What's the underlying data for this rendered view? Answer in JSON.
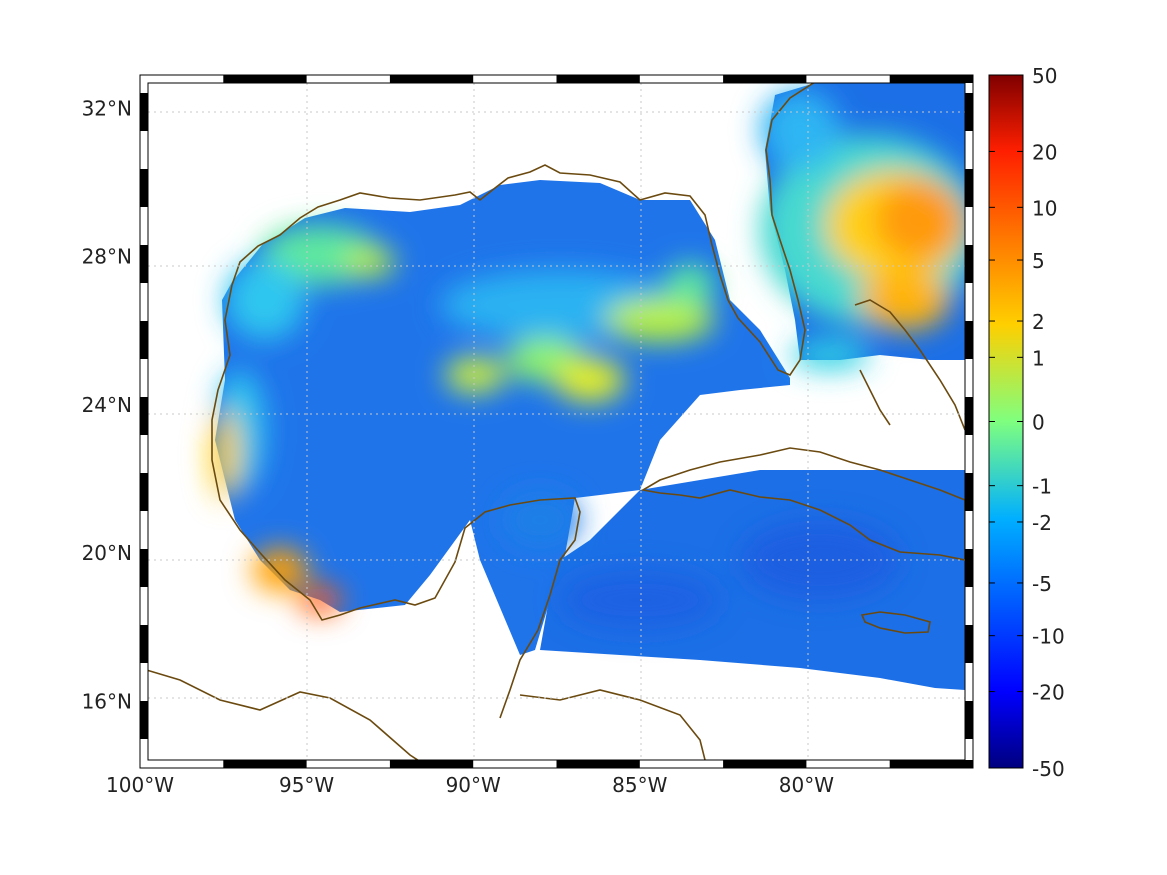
{
  "map": {
    "lon_range": [
      -100,
      -75
    ],
    "lat_range": [
      14.2,
      32.9
    ],
    "x_ticks": [
      {
        "lon": -100,
        "label": "100°W"
      },
      {
        "lon": -95,
        "label": "95°W"
      },
      {
        "lon": -90,
        "label": "90°W"
      },
      {
        "lon": -85,
        "label": "85°W"
      },
      {
        "lon": -80,
        "label": "80°W"
      }
    ],
    "y_ticks": [
      {
        "lat": 32,
        "label": "32°N"
      },
      {
        "lat": 28,
        "label": "28°N"
      },
      {
        "lat": 24,
        "label": "24°N"
      },
      {
        "lat": 20,
        "label": "20°N"
      },
      {
        "lat": 16,
        "label": "16°N"
      }
    ],
    "grid": "dotted",
    "coastline_color": "#6b4a10",
    "land_color": "#ffffff"
  },
  "colorbar": {
    "colormap": "jet",
    "ticks": [
      {
        "label": "50",
        "value": 50
      },
      {
        "label": "20",
        "value": 20
      },
      {
        "label": "10",
        "value": 10
      },
      {
        "label": "5",
        "value": 5
      },
      {
        "label": "2",
        "value": 2
      },
      {
        "label": "1",
        "value": 1
      },
      {
        "label": "0",
        "value": 0
      },
      {
        "label": "-1",
        "value": -1
      },
      {
        "label": "-2",
        "value": -2
      },
      {
        "label": "-5",
        "value": -5
      },
      {
        "label": "-10",
        "value": -10
      },
      {
        "label": "-20",
        "value": -20
      },
      {
        "label": "-50",
        "value": -50
      }
    ]
  },
  "colors": {
    "background_field": "#1f6fe6",
    "low_extreme": "#00008b",
    "high_extreme": "#7f0000"
  }
}
